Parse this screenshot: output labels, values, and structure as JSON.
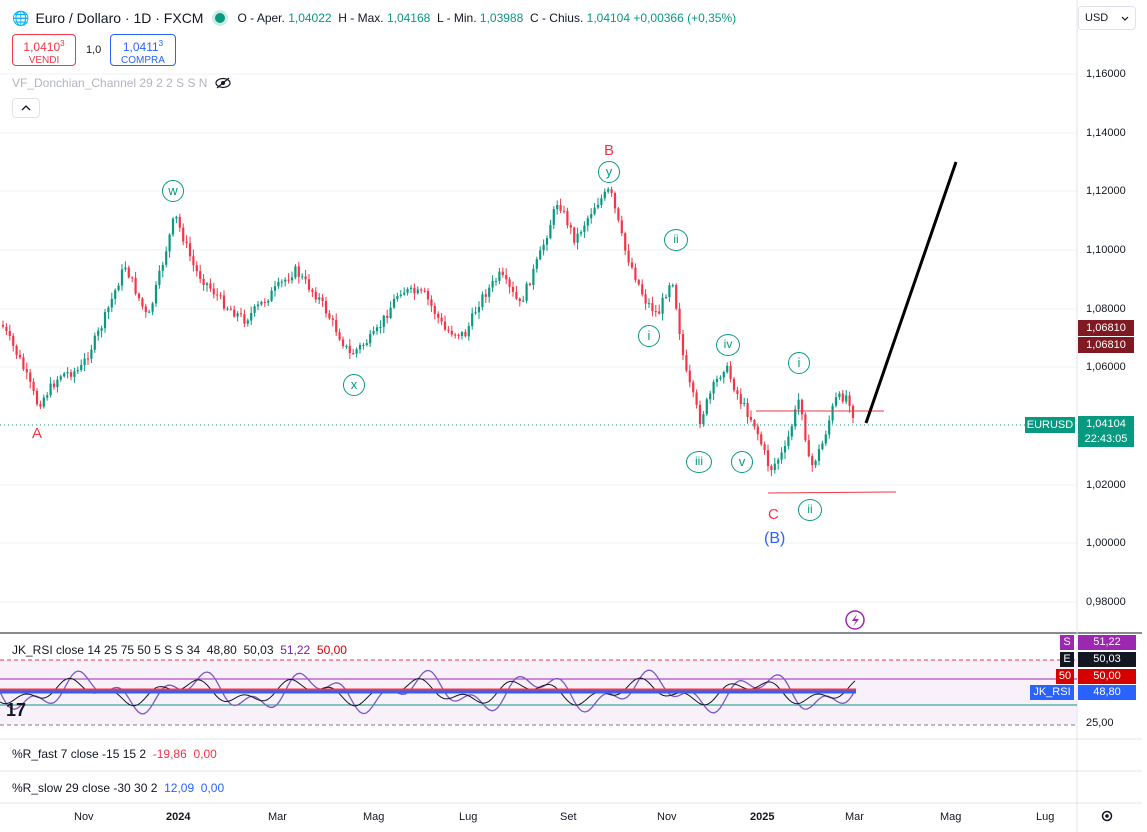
{
  "header": {
    "symbol": "Euro / Dollaro · 1D · FXCM",
    "ohlc": {
      "open_label": "O - Aper.",
      "open": "1,04022",
      "high_label": "H - Max.",
      "high": "1,04168",
      "low_label": "L - Min.",
      "low": "1,03988",
      "close_label": "C - Chius.",
      "close": "1,04104",
      "change": "+0,00366 (+0,35%)"
    },
    "currency": "USD"
  },
  "trade": {
    "sell_price": "1,0410",
    "sell_price_sup": "3",
    "sell_label": "VENDI",
    "spread": "1,0",
    "buy_price": "1,0411",
    "buy_price_sup": "3",
    "buy_label": "COMPRA"
  },
  "overlay_indicator": "VF_Donchian_Channel 29 2 2 S S N",
  "price_axis": [
    "1,16000",
    "1,14000",
    "1,12000",
    "1,10000",
    "1,08000",
    "1,06000",
    "1,02000",
    "1,00000",
    "0,98000"
  ],
  "price_tags": {
    "level_a": "1,06810",
    "level_b": "1,06810",
    "symbol_label": "EURUSD",
    "last": "1,04104",
    "countdown": "22:43:05"
  },
  "wave_labels": {
    "A": "A",
    "B": "B",
    "C": "C",
    "B_paren": "(B)",
    "w": "w",
    "x": "x",
    "y": "y",
    "i_1": "i",
    "ii_1": "ii",
    "iii_1": "iii",
    "iv_1": "iv",
    "v_1": "v",
    "i_2": "i",
    "ii_2": "ii"
  },
  "rsi_pane": {
    "title": "JK_RSI close 14 25 75 50 5 S S 34",
    "values": [
      "48,80",
      "50,03",
      "51,22",
      "50,00"
    ],
    "value_colors": [
      "#131722",
      "#131722",
      "#7b1fa2",
      "#d50000"
    ],
    "tags": {
      "s_letter": "S",
      "s_value": "51,22",
      "e_letter": "E",
      "e_value": "50,03",
      "mid_letter": "50",
      "mid_value": "50,00",
      "name": "JK_RSI",
      "name_value": "48,80"
    },
    "axis": "25,00"
  },
  "rfast_pane": {
    "title": "%R_fast 7 close -15 15 2",
    "v1": "-19,86",
    "v2": "0,00"
  },
  "rslow_pane": {
    "title": "%R_slow 29 close -30 30 2",
    "v1": "12,09",
    "v2": "0,00"
  },
  "time_axis": [
    "Nov",
    "2024",
    "Mar",
    "Mag",
    "Lug",
    "Set",
    "Nov",
    "2025",
    "Mar",
    "Mag",
    "Lug"
  ],
  "colors": {
    "up": "#089981",
    "down": "#f23645",
    "wave_green": "#089981",
    "wave_red": "#f23645",
    "wave_blue": "#2962ff"
  }
}
